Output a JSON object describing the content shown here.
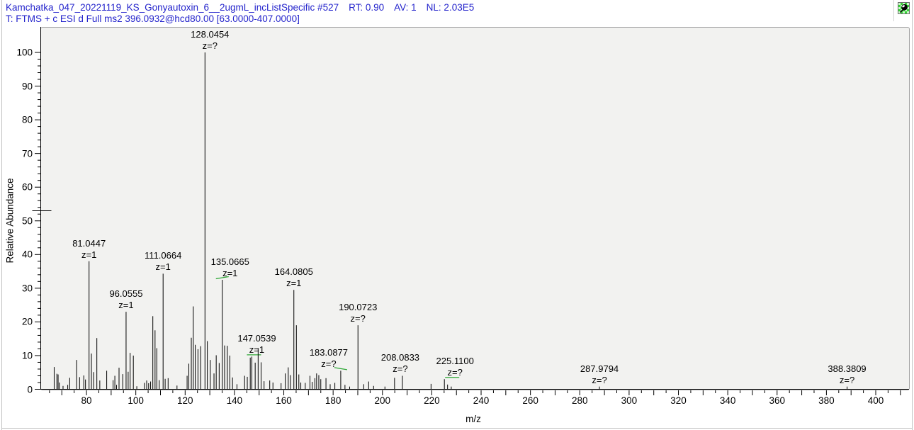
{
  "header": {
    "segments": [
      "Kamchatka_047_20221119_KS_Gonyautoxin_6__2ugmL_incListSpecific #527",
      "RT: 0.90",
      "AV: 1",
      "NL: 2.03E5"
    ],
    "filter_line": "T: FTMS + c ESI d Full ms2 396.0932@hcd80.00 [63.0000-407.0000]"
  },
  "toolbar": {
    "pin_icon": "pushpin-icon"
  },
  "colors": {
    "header_text": "#2424cc",
    "peak": "#000000",
    "flag_green": "#2ea836",
    "panel_bg": "#f2f2f0",
    "panel_border": "#a3a3a3"
  },
  "chart_data": {
    "type": "bar",
    "subtype": "centroid-mass-spectrum",
    "title": "",
    "xlabel": "m/z",
    "ylabel": "Relative Abundance",
    "xlim": [
      61.6,
      413.5
    ],
    "ylim": [
      0,
      100
    ],
    "x_axis": {
      "minor_tick_step": 5,
      "major_tick_step": 10,
      "label_values": [
        80,
        100,
        120,
        140,
        160,
        180,
        200,
        220,
        240,
        260,
        280,
        300,
        320,
        340,
        360,
        380,
        400
      ],
      "tick_labels": [
        "80",
        "100",
        "120",
        "140",
        "160",
        "180",
        "200",
        "220",
        "240",
        "260",
        "280",
        "300",
        "320",
        "340",
        "360",
        "380",
        "400"
      ]
    },
    "y_axis": {
      "minor_tick_step": 2,
      "major_tick_step": 10,
      "label_values": [
        0,
        10,
        20,
        30,
        40,
        50,
        60,
        70,
        80,
        90,
        100
      ],
      "tick_labels": [
        "0",
        "10",
        "20",
        "30",
        "40",
        "50",
        "60",
        "70",
        "80",
        "90",
        "100"
      ]
    },
    "axis_marker_y": 53,
    "peaks": [
      {
        "mz": 66.9,
        "i": 6.6
      },
      {
        "mz": 68.0,
        "i": 4.6
      },
      {
        "mz": 68.5,
        "i": 4.4
      },
      {
        "mz": 69.0,
        "i": 2.0
      },
      {
        "mz": 70.5,
        "i": 1.0
      },
      {
        "mz": 72.4,
        "i": 1.3
      },
      {
        "mz": 73.2,
        "i": 3.4
      },
      {
        "mz": 76.0,
        "i": 8.7
      },
      {
        "mz": 77.2,
        "i": 3.6
      },
      {
        "mz": 78.9,
        "i": 4.1
      },
      {
        "mz": 79.6,
        "i": 2.9
      },
      {
        "mz": 81.0447,
        "i": 38.0,
        "label": "81.0447",
        "z": "z=1"
      },
      {
        "mz": 82.0,
        "i": 10.6
      },
      {
        "mz": 82.9,
        "i": 5.1
      },
      {
        "mz": 84.2,
        "i": 15.2
      },
      {
        "mz": 85.4,
        "i": 2.6
      },
      {
        "mz": 88.2,
        "i": 5.5
      },
      {
        "mz": 90.8,
        "i": 2.7
      },
      {
        "mz": 91.5,
        "i": 4.0
      },
      {
        "mz": 92.2,
        "i": 1.3
      },
      {
        "mz": 93.2,
        "i": 6.4
      },
      {
        "mz": 94.7,
        "i": 4.5
      },
      {
        "mz": 96.0555,
        "i": 23.0,
        "label": "96.0555",
        "z": "z=1"
      },
      {
        "mz": 96.9,
        "i": 5.2
      },
      {
        "mz": 97.7,
        "i": 10.8
      },
      {
        "mz": 99.0,
        "i": 10.0
      },
      {
        "mz": 100.4,
        "i": 0.9
      },
      {
        "mz": 103.5,
        "i": 1.9
      },
      {
        "mz": 104.4,
        "i": 2.6
      },
      {
        "mz": 105.2,
        "i": 1.8
      },
      {
        "mz": 106.0,
        "i": 2.3
      },
      {
        "mz": 106.9,
        "i": 21.7
      },
      {
        "mz": 107.8,
        "i": 17.5
      },
      {
        "mz": 108.5,
        "i": 12.2
      },
      {
        "mz": 109.5,
        "i": 2.7
      },
      {
        "mz": 111.0664,
        "i": 34.3,
        "label": "111.0664",
        "z": "z=1"
      },
      {
        "mz": 111.9,
        "i": 3.1
      },
      {
        "mz": 113.1,
        "i": 3.3
      },
      {
        "mz": 116.7,
        "i": 1.1
      },
      {
        "mz": 120.8,
        "i": 4.0
      },
      {
        "mz": 121.5,
        "i": 7.6
      },
      {
        "mz": 122.5,
        "i": 15.3
      },
      {
        "mz": 123.3,
        "i": 24.6
      },
      {
        "mz": 124.1,
        "i": 13.2
      },
      {
        "mz": 125.2,
        "i": 11.9
      },
      {
        "mz": 126.3,
        "i": 12.8
      },
      {
        "mz": 128.0454,
        "i": 100.0,
        "label": "128.0454",
        "z": "z=?",
        "label_dx": 7
      },
      {
        "mz": 129.0,
        "i": 14.3
      },
      {
        "mz": 130.2,
        "i": 8.7
      },
      {
        "mz": 131.7,
        "i": 4.7
      },
      {
        "mz": 132.6,
        "i": 10.1
      },
      {
        "mz": 133.8,
        "i": 7.8
      },
      {
        "mz": 135.0665,
        "i": 32.5,
        "label": "135.0665",
        "z": "z=1",
        "label_dx": 11,
        "flag": "left"
      },
      {
        "mz": 136.0,
        "i": 13.0
      },
      {
        "mz": 137.1,
        "i": 12.9
      },
      {
        "mz": 138.1,
        "i": 10.0
      },
      {
        "mz": 139.2,
        "i": 3.5
      },
      {
        "mz": 141.0,
        "i": 1.5
      },
      {
        "mz": 144.1,
        "i": 4.0
      },
      {
        "mz": 145.2,
        "i": 3.7
      },
      {
        "mz": 146.4,
        "i": 9.4
      },
      {
        "mz": 147.0539,
        "i": 9.7,
        "label": "147.0539",
        "z": "z=1",
        "label_dx": 7,
        "flag": "center"
      },
      {
        "mz": 148.4,
        "i": 7.9
      },
      {
        "mz": 149.6,
        "i": 12.2
      },
      {
        "mz": 150.8,
        "i": 8.0
      },
      {
        "mz": 152.0,
        "i": 2.4
      },
      {
        "mz": 154.3,
        "i": 2.6
      },
      {
        "mz": 155.6,
        "i": 2.0
      },
      {
        "mz": 158.9,
        "i": 1.8
      },
      {
        "mz": 160.6,
        "i": 4.7
      },
      {
        "mz": 161.8,
        "i": 6.5
      },
      {
        "mz": 162.7,
        "i": 4.2
      },
      {
        "mz": 164.0805,
        "i": 29.5,
        "label": "164.0805",
        "z": "z=1"
      },
      {
        "mz": 165.1,
        "i": 19.0
      },
      {
        "mz": 166.1,
        "i": 4.4
      },
      {
        "mz": 166.9,
        "i": 2.0
      },
      {
        "mz": 168.7,
        "i": 1.9
      },
      {
        "mz": 170.6,
        "i": 4.0
      },
      {
        "mz": 171.5,
        "i": 2.2
      },
      {
        "mz": 172.6,
        "i": 3.3
      },
      {
        "mz": 173.3,
        "i": 4.7
      },
      {
        "mz": 174.2,
        "i": 4.2
      },
      {
        "mz": 175.0,
        "i": 3.0
      },
      {
        "mz": 177.1,
        "i": 3.3
      },
      {
        "mz": 178.8,
        "i": 1.5
      },
      {
        "mz": 180.7,
        "i": 1.9
      },
      {
        "mz": 183.0877,
        "i": 5.5,
        "label": "183.0877",
        "z": "z=?",
        "label_dx": -17,
        "flag": "right"
      },
      {
        "mz": 184.8,
        "i": 1.3
      },
      {
        "mz": 186.7,
        "i": 0.8
      },
      {
        "mz": 190.0723,
        "i": 19.0,
        "label": "190.0723",
        "z": "z=?"
      },
      {
        "mz": 192.4,
        "i": 1.5
      },
      {
        "mz": 194.4,
        "i": 2.3
      },
      {
        "mz": 196.4,
        "i": 1.0
      },
      {
        "mz": 201.0,
        "i": 0.8
      },
      {
        "mz": 204.9,
        "i": 3.4
      },
      {
        "mz": 208.0833,
        "i": 4.0,
        "label": "208.0833",
        "z": "z=?",
        "label_dx": -3
      },
      {
        "mz": 219.7,
        "i": 1.6
      },
      {
        "mz": 225.11,
        "i": 3.0,
        "label": "225.1100",
        "z": "z=?",
        "label_dx": 15,
        "flag": "center"
      },
      {
        "mz": 226.4,
        "i": 1.4
      },
      {
        "mz": 227.9,
        "i": 0.8
      },
      {
        "mz": 287.9794,
        "i": 0.8,
        "label": "287.9794",
        "z": "z=?"
      },
      {
        "mz": 388.3809,
        "i": 0.8,
        "label": "388.3809",
        "z": "z=?"
      }
    ],
    "legend": null,
    "grid": false
  }
}
